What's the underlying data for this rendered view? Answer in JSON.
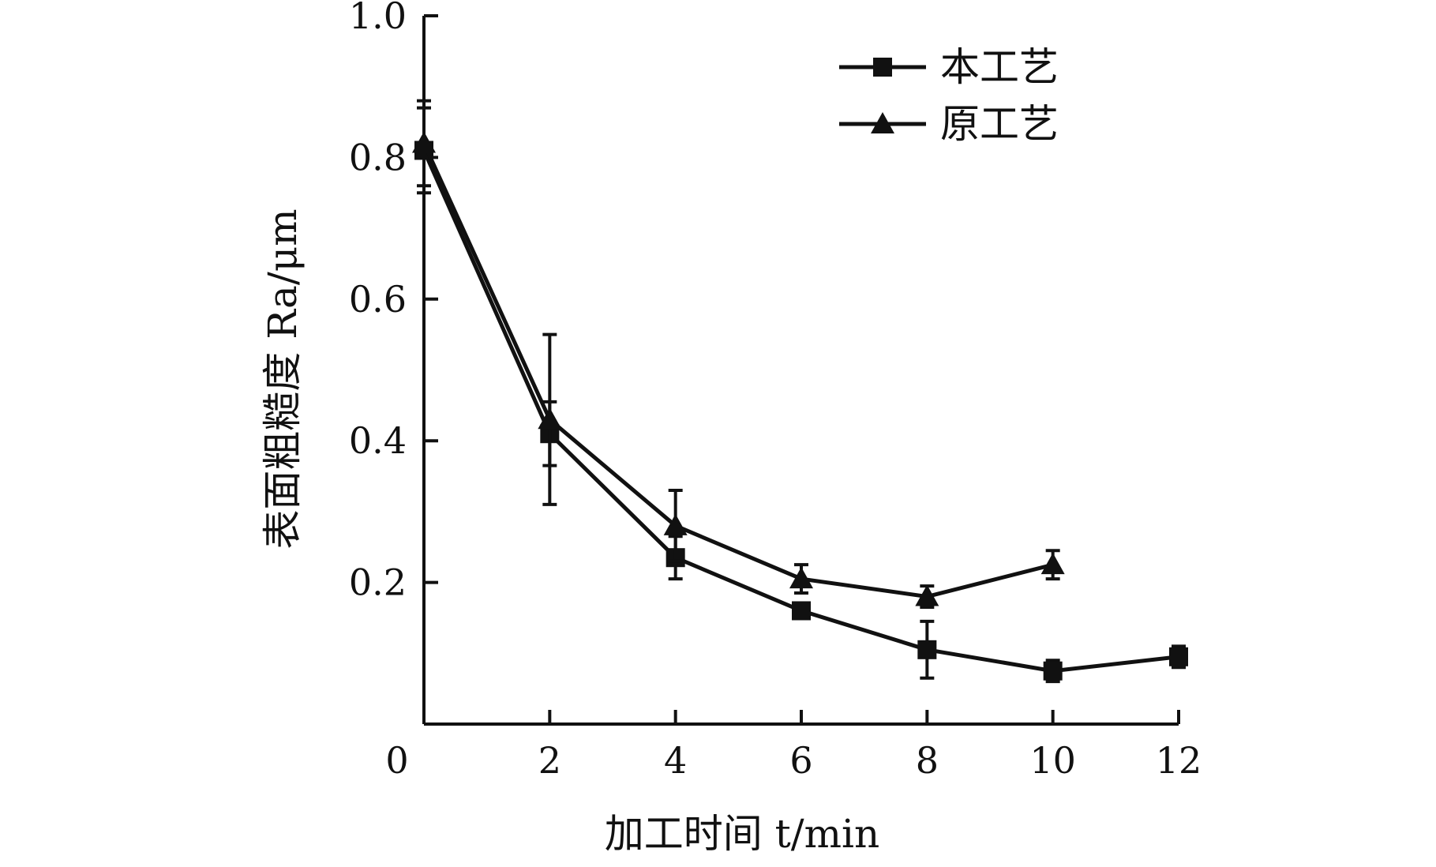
{
  "chart_data": {
    "type": "line",
    "xlabel": "加工时间 t/min",
    "ylabel": "表面粗糙度 Ra/μm",
    "xlim": [
      0,
      12
    ],
    "ylim": [
      0,
      1.0
    ],
    "x_ticks": [
      0,
      2,
      4,
      6,
      8,
      10,
      12
    ],
    "x_tick_labels": [
      "0",
      "2",
      "4",
      "6",
      "8",
      "10",
      "12"
    ],
    "y_ticks": [
      0.2,
      0.4,
      0.6,
      0.8,
      1.0
    ],
    "y_tick_labels": [
      "0.2",
      "0.4",
      "0.6",
      "0.8",
      "1.0"
    ],
    "grid": false,
    "legend_position": "top-right",
    "series": [
      {
        "name": "本工艺",
        "marker": "square",
        "color": "#111111",
        "x": [
          0,
          2,
          4,
          6,
          8,
          10,
          12
        ],
        "y": [
          0.81,
          0.41,
          0.235,
          0.16,
          0.105,
          0.075,
          0.095
        ],
        "err": [
          0.06,
          0.045,
          0.03,
          0.008,
          0.04,
          0.015,
          0.015
        ]
      },
      {
        "name": "原工艺",
        "marker": "triangle",
        "color": "#111111",
        "x": [
          0,
          2,
          4,
          6,
          8,
          10
        ],
        "y": [
          0.82,
          0.43,
          0.28,
          0.205,
          0.18,
          0.225
        ],
        "err": [
          0.06,
          0.12,
          0.05,
          0.02,
          0.015,
          0.02
        ]
      }
    ]
  }
}
